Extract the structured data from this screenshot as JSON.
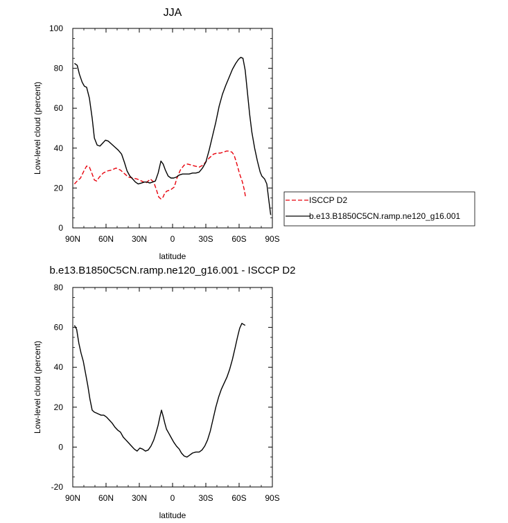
{
  "chart_data": [
    {
      "type": "line",
      "title": "JJA",
      "xlabel": "latitude",
      "ylabel": "Low-level cloud (percent)",
      "xlim": [
        -90,
        90
      ],
      "ylim": [
        0,
        100
      ],
      "x_ticks": [
        {
          "value": -90,
          "label": "90N"
        },
        {
          "value": -60,
          "label": "60N"
        },
        {
          "value": -30,
          "label": "30N"
        },
        {
          "value": 0,
          "label": "0"
        },
        {
          "value": 30,
          "label": "30S"
        },
        {
          "value": 60,
          "label": "60S"
        },
        {
          "value": 90,
          "label": "90S"
        }
      ],
      "y_ticks": [
        0,
        20,
        40,
        60,
        80,
        100
      ],
      "legend_position": "right",
      "series": [
        {
          "name": "ISCCP D2",
          "color": "#e8000b",
          "dash": "dashed",
          "points": [
            [
              -88.5,
              22
            ],
            [
              -86,
              23.5
            ],
            [
              -83,
              25
            ],
            [
              -80,
              28.5
            ],
            [
              -77.5,
              31
            ],
            [
              -75,
              30.5
            ],
            [
              -72.5,
              27
            ],
            [
              -70.5,
              24
            ],
            [
              -68.5,
              23.5
            ],
            [
              -66,
              25.5
            ],
            [
              -62.5,
              27.5
            ],
            [
              -59,
              28.5
            ],
            [
              -55,
              29
            ],
            [
              -51,
              30
            ],
            [
              -47,
              29
            ],
            [
              -43,
              27
            ],
            [
              -40,
              25.5
            ],
            [
              -36,
              25
            ],
            [
              -32,
              24.5
            ],
            [
              -28,
              23.5
            ],
            [
              -24,
              22.5
            ],
            [
              -20,
              24.5
            ],
            [
              -17,
              23
            ],
            [
              -14.5,
              19
            ],
            [
              -12.5,
              15.5
            ],
            [
              -10.5,
              14.5
            ],
            [
              -8.5,
              15.5
            ],
            [
              -7,
              17.5
            ],
            [
              -5,
              18.5
            ],
            [
              -2,
              19
            ],
            [
              1.5,
              20.5
            ],
            [
              4,
              25
            ],
            [
              7,
              29
            ],
            [
              10.5,
              31.5
            ],
            [
              13.5,
              32
            ],
            [
              17,
              31.5
            ],
            [
              20,
              31
            ],
            [
              24,
              30.5
            ],
            [
              27.5,
              31.5
            ],
            [
              30.5,
              33.5
            ],
            [
              33,
              35
            ],
            [
              35,
              36
            ],
            [
              37,
              37
            ],
            [
              40,
              37.5
            ],
            [
              43,
              37.5
            ],
            [
              46,
              38
            ],
            [
              48.5,
              38.5
            ],
            [
              51,
              38.5
            ],
            [
              53.5,
              38
            ],
            [
              55.5,
              36.5
            ],
            [
              58,
              32
            ],
            [
              60.5,
              27
            ],
            [
              63,
              23
            ],
            [
              64.5,
              19.5
            ],
            [
              66,
              15
            ]
          ]
        },
        {
          "name": "b.e13.B1850C5CN.ramp.ne120_g16.001",
          "color": "#000000",
          "dash": "solid",
          "points": [
            [
              -88.5,
              82.5
            ],
            [
              -86,
              81.5
            ],
            [
              -84,
              77
            ],
            [
              -81.5,
              73
            ],
            [
              -79.5,
              71
            ],
            [
              -77.5,
              70.5
            ],
            [
              -75,
              65
            ],
            [
              -72.5,
              55
            ],
            [
              -70.5,
              45
            ],
            [
              -68,
              41.5
            ],
            [
              -65.5,
              41
            ],
            [
              -63,
              42.5
            ],
            [
              -60.5,
              44
            ],
            [
              -58,
              43.5
            ],
            [
              -55,
              42
            ],
            [
              -52,
              40.5
            ],
            [
              -49,
              39
            ],
            [
              -46,
              37
            ],
            [
              -43.5,
              33
            ],
            [
              -41,
              28.5
            ],
            [
              -38.5,
              26
            ],
            [
              -36,
              24.5
            ],
            [
              -33.5,
              23
            ],
            [
              -31,
              22
            ],
            [
              -28,
              22.5
            ],
            [
              -25.5,
              23
            ],
            [
              -23,
              23
            ],
            [
              -20.5,
              22.5
            ],
            [
              -18,
              23
            ],
            [
              -15.5,
              23.5
            ],
            [
              -13,
              27.5
            ],
            [
              -10.5,
              33.5
            ],
            [
              -8.5,
              32
            ],
            [
              -6.5,
              29
            ],
            [
              -4,
              26
            ],
            [
              -1.5,
              25
            ],
            [
              1,
              25
            ],
            [
              3.5,
              25.5
            ],
            [
              6,
              26.5
            ],
            [
              9,
              27
            ],
            [
              12,
              27
            ],
            [
              15,
              27
            ],
            [
              18,
              27.5
            ],
            [
              21,
              27.5
            ],
            [
              24,
              28
            ],
            [
              27,
              30
            ],
            [
              30,
              33
            ],
            [
              33,
              39
            ],
            [
              36,
              46
            ],
            [
              39,
              53
            ],
            [
              42,
              61
            ],
            [
              45,
              67
            ],
            [
              48,
              71.5
            ],
            [
              51,
              75.5
            ],
            [
              54,
              79.5
            ],
            [
              57,
              82.5
            ],
            [
              59.5,
              84.5
            ],
            [
              61.5,
              85.5
            ],
            [
              63.5,
              85
            ],
            [
              65.5,
              79
            ],
            [
              67.5,
              68
            ],
            [
              69.5,
              57
            ],
            [
              71.5,
              48
            ],
            [
              74,
              40
            ],
            [
              76.5,
              33.5
            ],
            [
              79,
              28
            ],
            [
              80.5,
              26
            ],
            [
              83,
              24.5
            ],
            [
              85,
              22
            ],
            [
              87,
              13
            ],
            [
              88.5,
              6.5
            ]
          ]
        }
      ]
    },
    {
      "type": "line",
      "title": "b.e13.B1850C5CN.ramp.ne120_g16.001 - ISCCP D2",
      "xlabel": "latitude",
      "ylabel": "Low-level cloud (percent)",
      "xlim": [
        -90,
        90
      ],
      "ylim": [
        -20,
        80
      ],
      "x_ticks": [
        {
          "value": -90,
          "label": "90N"
        },
        {
          "value": -60,
          "label": "60N"
        },
        {
          "value": -30,
          "label": "30N"
        },
        {
          "value": 0,
          "label": "0"
        },
        {
          "value": 30,
          "label": "30S"
        },
        {
          "value": 60,
          "label": "60S"
        },
        {
          "value": 90,
          "label": "90S"
        }
      ],
      "y_ticks": [
        -20,
        0,
        20,
        40,
        60,
        80
      ],
      "series": [
        {
          "color": "#000000",
          "dash": "solid",
          "points": [
            [
              -88.5,
              61
            ],
            [
              -86.5,
              59
            ],
            [
              -84.5,
              52
            ],
            [
              -82.5,
              47
            ],
            [
              -80.5,
              43
            ],
            [
              -78.5,
              37
            ],
            [
              -76.5,
              31
            ],
            [
              -74.5,
              24
            ],
            [
              -72.5,
              18.5
            ],
            [
              -70.5,
              17.5
            ],
            [
              -68.5,
              17
            ],
            [
              -66.5,
              16.5
            ],
            [
              -64.5,
              16
            ],
            [
              -62,
              16
            ],
            [
              -59.5,
              15
            ],
            [
              -57,
              13.5
            ],
            [
              -54.5,
              12
            ],
            [
              -52,
              10
            ],
            [
              -49.5,
              8.5
            ],
            [
              -47,
              7.5
            ],
            [
              -44.5,
              5
            ],
            [
              -42,
              3.5
            ],
            [
              -39.5,
              2
            ],
            [
              -37,
              0.5
            ],
            [
              -34.5,
              -1
            ],
            [
              -32,
              -2
            ],
            [
              -29.5,
              -0.5
            ],
            [
              -27,
              -1
            ],
            [
              -24.5,
              -2
            ],
            [
              -22,
              -1.5
            ],
            [
              -19.5,
              0.5
            ],
            [
              -17,
              3.5
            ],
            [
              -15,
              7
            ],
            [
              -13,
              11
            ],
            [
              -11.5,
              15
            ],
            [
              -10,
              18.5
            ],
            [
              -8.5,
              15.5
            ],
            [
              -7,
              12
            ],
            [
              -5.5,
              9
            ],
            [
              -3.5,
              7
            ],
            [
              -1.5,
              5
            ],
            [
              1,
              2.5
            ],
            [
              3.5,
              0.5
            ],
            [
              6,
              -1
            ],
            [
              8,
              -3
            ],
            [
              10.5,
              -4.5
            ],
            [
              13,
              -5
            ],
            [
              15.5,
              -4
            ],
            [
              18,
              -3
            ],
            [
              21,
              -2.5
            ],
            [
              24,
              -2.5
            ],
            [
              26.5,
              -1.5
            ],
            [
              29,
              0.5
            ],
            [
              31.5,
              3.5
            ],
            [
              34,
              8
            ],
            [
              36.5,
              14
            ],
            [
              39,
              20
            ],
            [
              41.5,
              25
            ],
            [
              44,
              29
            ],
            [
              46.5,
              32
            ],
            [
              49,
              35
            ],
            [
              51.5,
              39
            ],
            [
              54,
              44
            ],
            [
              56.5,
              50
            ],
            [
              58.5,
              55
            ],
            [
              60.5,
              59.5
            ],
            [
              62.5,
              62
            ],
            [
              64,
              61.5
            ],
            [
              65.5,
              61
            ]
          ]
        }
      ]
    }
  ]
}
